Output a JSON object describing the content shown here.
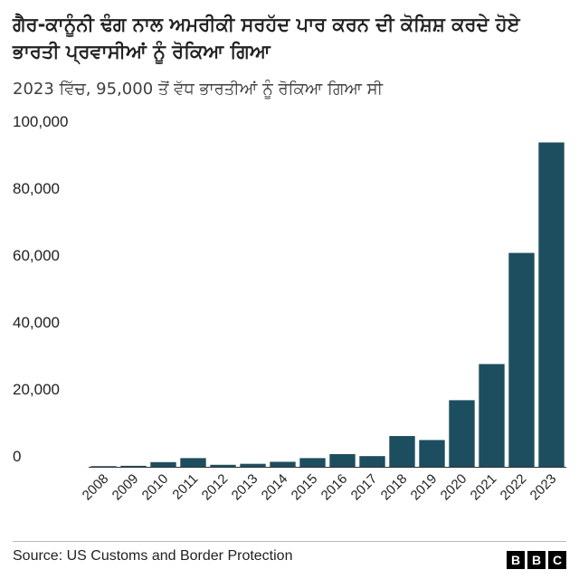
{
  "header": {
    "title": "ਗੈਰ-ਕਾਨੂੰਨੀ ਢੰਗ ਨਾਲ ਅਮਰੀਕੀ ਸਰਹੱਦ ਪਾਰ ਕਰਨ ਦੀ ਕੋਸ਼ਿਸ਼ ਕਰਦੇ ਹੋਏ ਭਾਰਤੀ ਪ੍ਰਵਾਸੀਆਂ ਨੂੰ ਰੋਕਿਆ ਗਿਆ",
    "subtitle": "2023 ਵਿੱਚ, 95,000 ਤੋਂ ਵੱਧ ਭਾਰਤੀਆਂ ਨੂੰ ਰੋਕਿਆ ਗਿਆ ਸੀ"
  },
  "footer": {
    "source": "Source: US Customs and Border Protection",
    "logo": [
      "B",
      "B",
      "C"
    ]
  },
  "colors": {
    "bar": "#1d4e5f",
    "baseline": "#333333"
  },
  "chart_data": {
    "type": "bar",
    "title": "ਗੈਰ-ਕਾਨੂੰਨੀ ਢੰਗ ਨਾਲ ਅਮਰੀਕੀ ਸਰਹੱਦ ਪਾਰ ਕਰਨ ਦੀ ਕੋਸ਼ਿਸ਼ ਕਰਦੇ ਹੋਏ ਭਾਰਤੀ ਪ੍ਰਵਾਸੀਆਂ ਨੂੰ ਰੋਕਿਆ ਗਿਆ",
    "subtitle": "2023 ਵਿੱਚ, 95,000 ਤੋਂ ਵੱਧ ਭਾਰਤੀਆਂ ਨੂੰ ਰੋਕਿਆ ਗਿਆ ਸੀ",
    "categories": [
      "2008",
      "2009",
      "2010",
      "2011",
      "2012",
      "2013",
      "2014",
      "2015",
      "2016",
      "2017",
      "2018",
      "2019",
      "2020",
      "2021",
      "2022",
      "2023"
    ],
    "values": [
      200,
      300,
      1400,
      2600,
      600,
      900,
      1500,
      2600,
      3800,
      3200,
      9200,
      8000,
      19900,
      30700,
      63900,
      96900
    ],
    "ylim": [
      0,
      100000
    ],
    "yticks": [
      0,
      20000,
      40000,
      60000,
      80000,
      100000
    ],
    "ytick_labels": [
      "0",
      "20,000",
      "40,000",
      "60,000",
      "80,000",
      "100,000"
    ],
    "grid": false,
    "xlabel": "",
    "ylabel": ""
  }
}
